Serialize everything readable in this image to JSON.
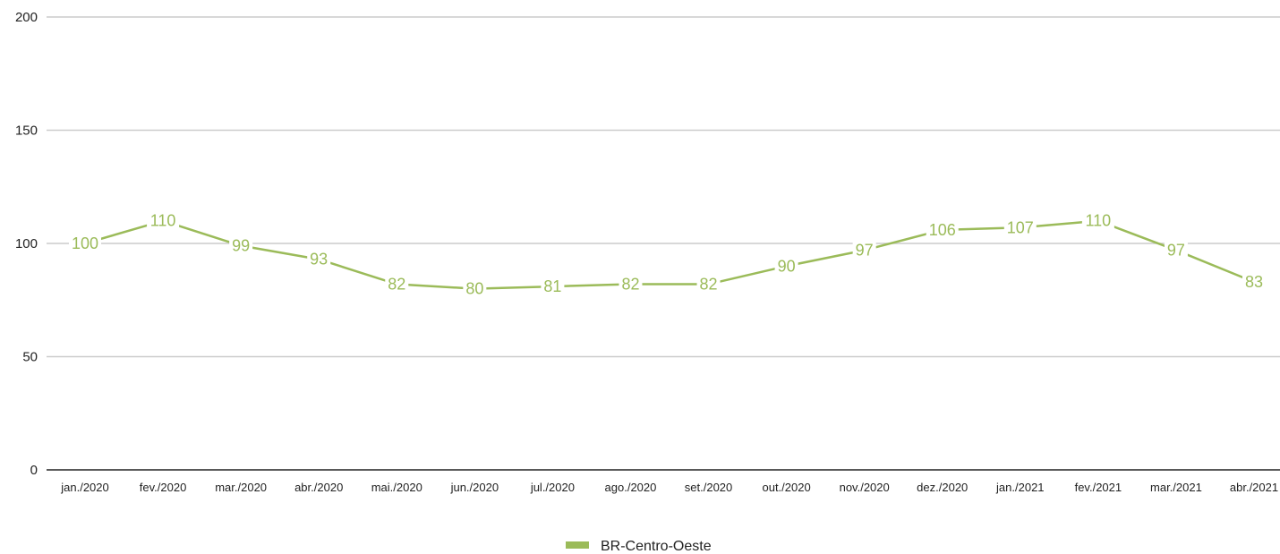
{
  "chart_data": {
    "type": "line",
    "title": "",
    "xlabel": "",
    "ylabel": "",
    "ylim": [
      0,
      200
    ],
    "yticks": [
      "0",
      "50",
      "100",
      "150",
      "200"
    ],
    "grid": true,
    "legend_position": "bottom-center",
    "categories": [
      "jan./2020",
      "fev./2020",
      "mar./2020",
      "abr./2020",
      "mai./2020",
      "jun./2020",
      "jul./2020",
      "ago./2020",
      "set./2020",
      "out./2020",
      "nov./2020",
      "dez./2020",
      "jan./2021",
      "fev./2021",
      "mar./2021",
      "abr./2021"
    ],
    "series": [
      {
        "name": "BR-Centro-Oeste",
        "color": "#9bbb59",
        "values": [
          100,
          110,
          99,
          93,
          82,
          80,
          81,
          82,
          82,
          90,
          97,
          106,
          107,
          110,
          97,
          83
        ],
        "labels": [
          "100",
          "110",
          "99",
          "93",
          "82",
          "80",
          "81",
          "82",
          "82",
          "90",
          "97",
          "106",
          "107",
          "110",
          "97",
          "83"
        ]
      }
    ]
  }
}
